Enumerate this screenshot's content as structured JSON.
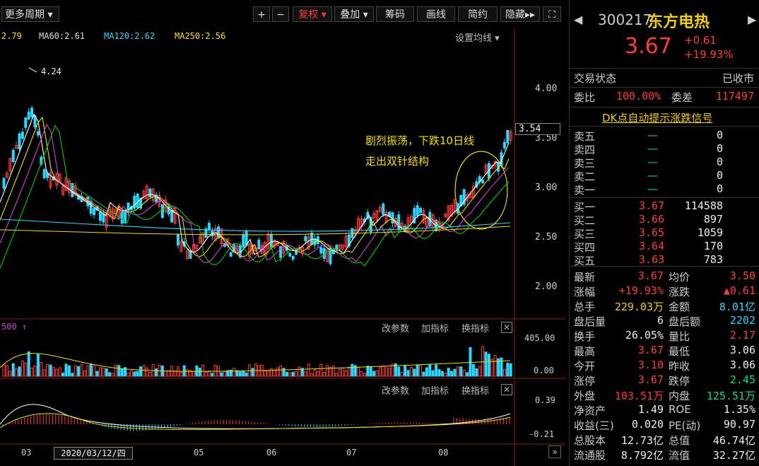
{
  "toolbar": {
    "period_select": "更多周期",
    "zoom_in": "+",
    "zoom_out": "−",
    "adjust": "复权",
    "overlay": "叠加",
    "chips": "筹码",
    "draw": "画线",
    "brief": "简约",
    "hide": "隐藏"
  },
  "ma_legend": {
    "ma_short": "2.79",
    "ma60": "MA60:2.61",
    "ma120": "MA120:2.62",
    "ma250": "MA250:2.56",
    "settings": "设置均线"
  },
  "price_axis": [
    "4.00",
    "3.50",
    "3.00",
    "2.50",
    "2.00"
  ],
  "current_price_tag": "3.54",
  "high_label": "4.24",
  "annotation": {
    "line1": "剧烈振荡，下跌10日线",
    "line2": "走出双针结构"
  },
  "volume_panel": {
    "label": "500",
    "params": "改参数",
    "add_indicator": "加指标",
    "switch_indicator": "换指标",
    "axis_top": "405.00",
    "axis_bottom": "0.00"
  },
  "macd_panel": {
    "params": "改参数",
    "add_indicator": "加指标",
    "switch_indicator": "换指标",
    "axis_top": "0.39",
    "axis_bottom": "-0.21"
  },
  "date_axis": {
    "ticks": [
      "03",
      "05",
      "06",
      "07",
      "08"
    ],
    "cursor_date": "2020/03/12/四"
  },
  "stock": {
    "code": "300217",
    "name": "东方电热",
    "price": "3.67",
    "change": "+0.61",
    "change_pct": "+19.93%"
  },
  "status": {
    "label": "交易状态",
    "value": "已收市"
  },
  "commission": {
    "ratio_label": "委比",
    "ratio": "100.00%",
    "diff_label": "委差",
    "diff": "117497"
  },
  "dk_link": "DK点自动提示涨跌信号",
  "asks": [
    {
      "label": "卖五",
      "price": "—",
      "vol": "0"
    },
    {
      "label": "卖四",
      "price": "—",
      "vol": "0"
    },
    {
      "label": "卖三",
      "price": "—",
      "vol": "0"
    },
    {
      "label": "卖二",
      "price": "—",
      "vol": "0"
    },
    {
      "label": "卖一",
      "price": "—",
      "vol": "0"
    }
  ],
  "bids": [
    {
      "label": "买一",
      "price": "3.67",
      "vol": "114588"
    },
    {
      "label": "买二",
      "price": "3.66",
      "vol": "897"
    },
    {
      "label": "买三",
      "price": "3.65",
      "vol": "1059"
    },
    {
      "label": "买四",
      "price": "3.64",
      "vol": "170"
    },
    {
      "label": "买五",
      "price": "3.63",
      "vol": "783"
    }
  ],
  "quotes": [
    {
      "l1": "最新",
      "v1": "3.67",
      "c1": "red",
      "l2": "均价",
      "v2": "3.50",
      "c2": "red"
    },
    {
      "l1": "涨幅",
      "v1": "+19.93%",
      "c1": "red",
      "l2": "涨跌",
      "v2": "▲0.61",
      "c2": "red"
    },
    {
      "l1": "总手",
      "v1": "229.03万",
      "c1": "yellow",
      "l2": "金额",
      "v2": "8.01亿",
      "c2": "cyan"
    },
    {
      "l1": "盘后量",
      "v1": "6",
      "c1": "white",
      "l2": "盘后额",
      "v2": "2202",
      "c2": "cyan"
    },
    {
      "l1": "换手",
      "v1": "26.05%",
      "c1": "white",
      "l2": "量比",
      "v2": "2.17",
      "c2": "red"
    },
    {
      "l1": "最高",
      "v1": "3.67",
      "c1": "red",
      "l2": "最低",
      "v2": "3.06",
      "c2": "white"
    },
    {
      "l1": "今开",
      "v1": "3.10",
      "c1": "red",
      "l2": "昨收",
      "v2": "3.06",
      "c2": "white"
    },
    {
      "l1": "涨停",
      "v1": "3.67",
      "c1": "red",
      "l2": "跌停",
      "v2": "2.45",
      "c2": "green"
    },
    {
      "l1": "外盘",
      "v1": "103.51万",
      "c1": "red",
      "l2": "内盘",
      "v2": "125.51万",
      "c2": "green"
    },
    {
      "l1": "净资产",
      "v1": "1.49",
      "c1": "white",
      "l2": "ROE",
      "v2": "1.35%",
      "c2": "white"
    },
    {
      "l1": "收益(三)",
      "v1": "0.020",
      "c1": "white",
      "l2": "PE(动)",
      "v2": "90.97",
      "c2": "white"
    },
    {
      "l1": "总股本",
      "v1": "12.73亿",
      "c1": "white",
      "l2": "总值",
      "v2": "46.74亿",
      "c2": "white"
    },
    {
      "l1": "流通股",
      "v1": "8.792亿",
      "c1": "white",
      "l2": "流值",
      "v2": "32.27亿",
      "c2": "white"
    }
  ]
}
